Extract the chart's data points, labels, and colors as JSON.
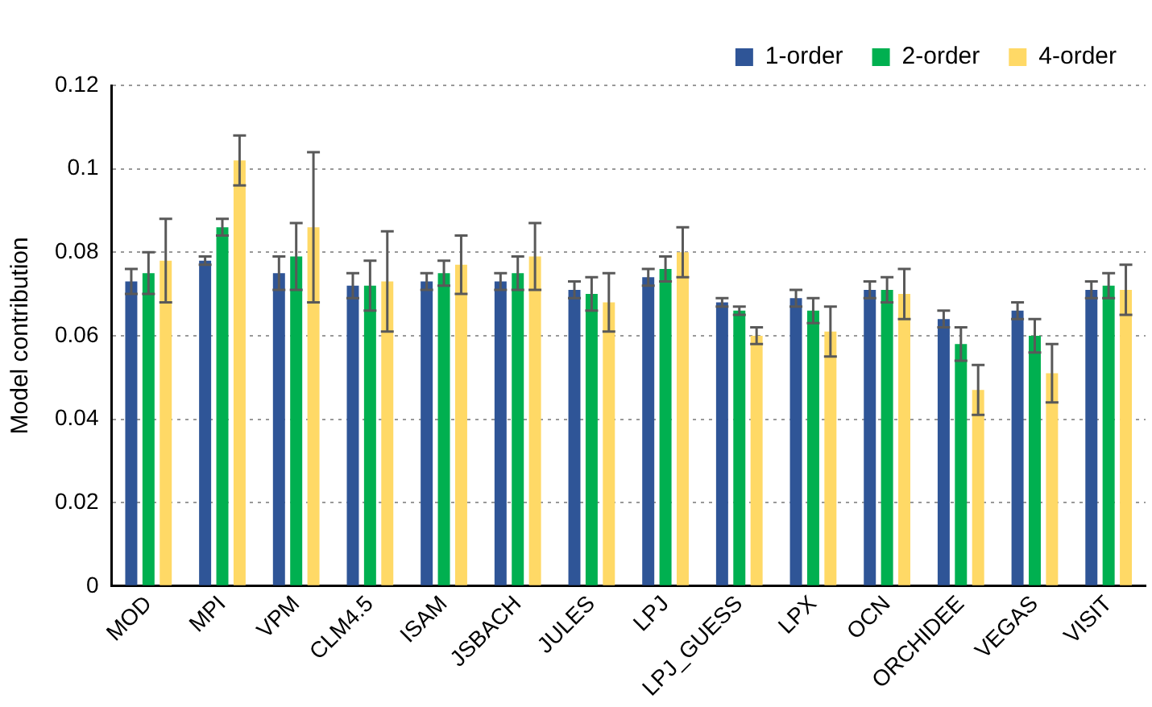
{
  "chart_data": {
    "type": "bar",
    "ylabel": "Model contribution",
    "categories": [
      "MOD",
      "MPI",
      "VPM",
      "CLM4.5",
      "ISAM",
      "JSBACH",
      "JULES",
      "LPJ",
      "LPJ_GUESS",
      "LPX",
      "OCN",
      "ORCHIDEE",
      "VEGAS",
      "VISIT"
    ],
    "series": [
      {
        "name": "1-order",
        "color": "#2f5597",
        "values": [
          0.073,
          0.078,
          0.075,
          0.072,
          0.073,
          0.073,
          0.071,
          0.074,
          0.068,
          0.069,
          0.071,
          0.064,
          0.066,
          0.071
        ],
        "errors": [
          0.003,
          0.001,
          0.004,
          0.003,
          0.002,
          0.002,
          0.002,
          0.002,
          0.001,
          0.002,
          0.002,
          0.002,
          0.002,
          0.002
        ]
      },
      {
        "name": "2-order",
        "color": "#00b050",
        "values": [
          0.075,
          0.086,
          0.079,
          0.072,
          0.075,
          0.075,
          0.07,
          0.076,
          0.066,
          0.066,
          0.071,
          0.058,
          0.06,
          0.072
        ],
        "errors": [
          0.005,
          0.002,
          0.008,
          0.006,
          0.003,
          0.004,
          0.004,
          0.003,
          0.001,
          0.003,
          0.003,
          0.004,
          0.004,
          0.003
        ]
      },
      {
        "name": "4-order",
        "color": "#ffd966",
        "values": [
          0.078,
          0.102,
          0.086,
          0.073,
          0.077,
          0.079,
          0.068,
          0.08,
          0.06,
          0.061,
          0.07,
          0.047,
          0.051,
          0.071
        ],
        "errors": [
          0.01,
          0.006,
          0.018,
          0.012,
          0.007,
          0.008,
          0.007,
          0.006,
          0.002,
          0.006,
          0.006,
          0.006,
          0.007,
          0.006
        ]
      }
    ],
    "ylim": [
      0,
      0.12
    ],
    "yticks": [
      0,
      0.02,
      0.04,
      0.06,
      0.08,
      0.1,
      0.12
    ],
    "grid": "y",
    "legend": "top right"
  }
}
